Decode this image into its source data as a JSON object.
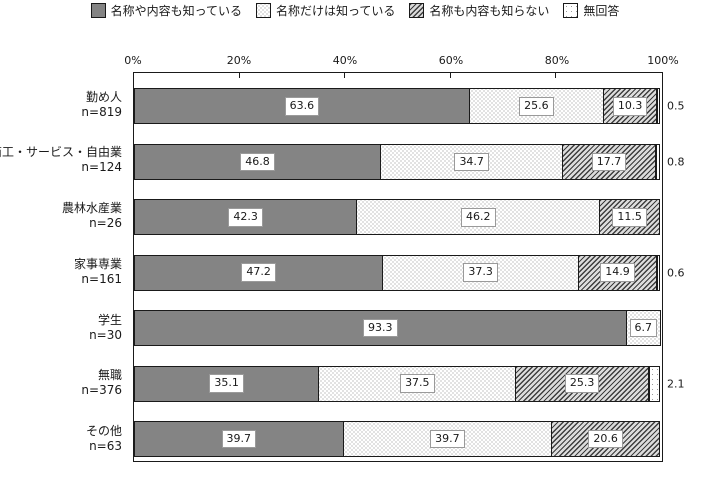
{
  "chart_data": {
    "type": "bar",
    "orientation": "horizontal",
    "stacked": true,
    "unit": "%",
    "xlim": [
      0,
      100
    ],
    "x_ticks": [
      "0%",
      "20%",
      "40%",
      "60%",
      "80%",
      "100%"
    ],
    "x_tick_values": [
      0,
      20,
      40,
      60,
      80,
      100
    ],
    "grid": false,
    "legend_position": "top",
    "categories": [
      {
        "label": "勤め人",
        "n": "n=819"
      },
      {
        "label": "商工・サービス・自由業",
        "n": "n=124"
      },
      {
        "label": "農林水産業",
        "n": "n=26"
      },
      {
        "label": "家事専業",
        "n": "n=161"
      },
      {
        "label": "学生",
        "n": "n=30"
      },
      {
        "label": "無職",
        "n": "n=376"
      },
      {
        "label": "その他",
        "n": "n=63"
      }
    ],
    "series": [
      {
        "name": "名称や内容も知っている",
        "pattern": "solid",
        "color": "#848484",
        "values": [
          63.6,
          46.8,
          42.3,
          47.2,
          93.3,
          35.1,
          39.7
        ]
      },
      {
        "name": "名称だけは知っている",
        "pattern": "fine-dots",
        "color": "#ffffff",
        "values": [
          25.6,
          34.7,
          46.2,
          37.3,
          6.7,
          37.5,
          39.7
        ]
      },
      {
        "name": "名称も内容も知らない",
        "pattern": "diagonal-hatch",
        "color": "#dcdcdc",
        "values": [
          10.3,
          17.7,
          11.5,
          14.9,
          0,
          25.3,
          20.6
        ]
      },
      {
        "name": "無回答",
        "pattern": "sparse-dots",
        "color": "#ffffff",
        "values": [
          0.5,
          0.8,
          0,
          0.6,
          0,
          2.1,
          0
        ]
      }
    ],
    "value_label_inside_min": 5,
    "colors": {
      "border": "#1a1a1a",
      "value_box_border": "#9a9a9a",
      "background": "#ffffff"
    }
  }
}
